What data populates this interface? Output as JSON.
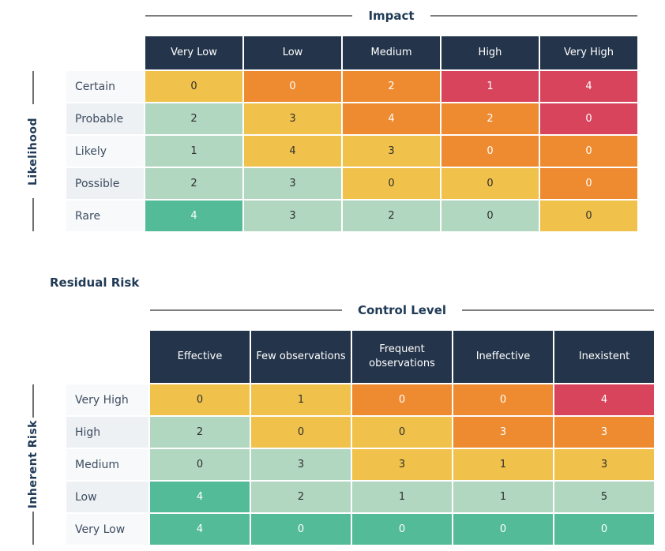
{
  "palette": {
    "header_bg": "#24344a",
    "header_text": "#ffffff",
    "title_color": "#203a56",
    "line_color": "#7d7d7d",
    "tick_color": "#6e6e6e",
    "row_label_bg_odd": "#f8f9fb",
    "row_label_bg_even": "#eef1f4",
    "row_label_text": "#3d4d60",
    "cell_text_dark": "#2f2f2f",
    "cell_text_light": "#ffffff",
    "cell_colors": {
      "green": "#54bb99",
      "light_green": "#b1d7c1",
      "yellow": "#f0c24b",
      "orange": "#ee8a30",
      "red": "#d8445b"
    }
  },
  "sections": {
    "residual_risk_heading": "Residual Risk"
  },
  "chart_data": [
    {
      "type": "heatmap",
      "title": "Impact",
      "y_axis_label": "Likelihood",
      "columns": [
        "Very Low",
        "Low",
        "Medium",
        "High",
        "Very High"
      ],
      "rows": [
        "Certain",
        "Probable",
        "Likely",
        "Possible",
        "Rare"
      ],
      "values": [
        [
          0,
          0,
          2,
          1,
          4
        ],
        [
          2,
          3,
          4,
          2,
          0
        ],
        [
          1,
          4,
          3,
          0,
          0
        ],
        [
          2,
          3,
          0,
          0,
          0
        ],
        [
          4,
          3,
          2,
          0,
          0
        ]
      ],
      "colors": [
        [
          "yellow",
          "orange",
          "orange",
          "red",
          "red"
        ],
        [
          "light_green",
          "yellow",
          "orange",
          "orange",
          "red"
        ],
        [
          "light_green",
          "yellow",
          "yellow",
          "orange",
          "orange"
        ],
        [
          "light_green",
          "light_green",
          "yellow",
          "yellow",
          "orange"
        ],
        [
          "green",
          "light_green",
          "light_green",
          "light_green",
          "yellow"
        ]
      ],
      "legend": "off",
      "grid": "white 2px separators"
    },
    {
      "type": "heatmap",
      "title": "Control Level",
      "y_axis_label": "Inherent Risk",
      "columns": [
        "Effective",
        "Few observations",
        "Frequent observations",
        "Ineffective",
        "Inexistent"
      ],
      "rows": [
        "Very High",
        "High",
        "Medium",
        "Low",
        "Very Low"
      ],
      "values": [
        [
          0,
          1,
          0,
          0,
          4
        ],
        [
          2,
          0,
          0,
          3,
          3
        ],
        [
          0,
          3,
          3,
          1,
          3
        ],
        [
          4,
          2,
          1,
          1,
          5
        ],
        [
          4,
          0,
          0,
          0,
          0
        ]
      ],
      "colors": [
        [
          "yellow",
          "yellow",
          "orange",
          "orange",
          "red"
        ],
        [
          "light_green",
          "yellow",
          "yellow",
          "orange",
          "orange"
        ],
        [
          "light_green",
          "light_green",
          "yellow",
          "yellow",
          "yellow"
        ],
        [
          "green",
          "light_green",
          "light_green",
          "light_green",
          "light_green"
        ],
        [
          "green",
          "green",
          "green",
          "green",
          "green"
        ]
      ],
      "legend": "off",
      "grid": "white 2px separators"
    }
  ]
}
